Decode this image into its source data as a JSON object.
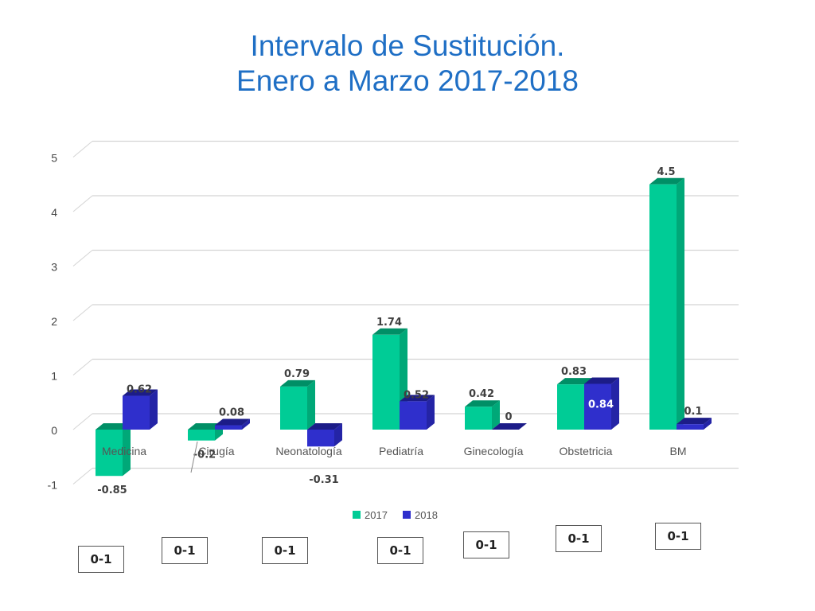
{
  "title_lines": [
    "Intervalo de Sustitución.",
    "Enero a Marzo 2017-2018"
  ],
  "colors": {
    "2017": "#00cc96",
    "2018": "#2f2fcc",
    "title": "#1f6fc5"
  },
  "chart_data": {
    "type": "bar",
    "title": "Intervalo de Sustitución. Enero a Marzo 2017-2018",
    "categories": [
      "Medicina",
      "Cirugía",
      "Neonatología",
      "Pediatría",
      "Ginecología",
      "Obstetricia",
      "BM"
    ],
    "series": [
      {
        "name": "2017",
        "values": [
          -0.85,
          -0.2,
          0.79,
          1.74,
          0.42,
          0.83,
          4.5
        ]
      },
      {
        "name": "2018",
        "values": [
          0.62,
          0.08,
          -0.31,
          0.52,
          0,
          0.84,
          0.1
        ]
      }
    ],
    "value_labels": {
      "2017": [
        "-0.85",
        "-0.2",
        "0.79",
        "1.74",
        "0.42",
        "0.83",
        "4.5"
      ],
      "2018": [
        "0.62",
        "0.08",
        "-0.31",
        "0.52",
        "0",
        "0.84",
        "0.1"
      ]
    },
    "yticks": [
      "-1",
      "0",
      "1",
      "2",
      "3",
      "4",
      "5"
    ],
    "ylim": [
      -1,
      5
    ],
    "grid": true,
    "legend_position": "bottom",
    "style": "3d-column"
  },
  "reference_boxes": [
    "0-1",
    "0-1",
    "0-1",
    "0-1",
    "0-1",
    "0-1",
    "0-1"
  ]
}
